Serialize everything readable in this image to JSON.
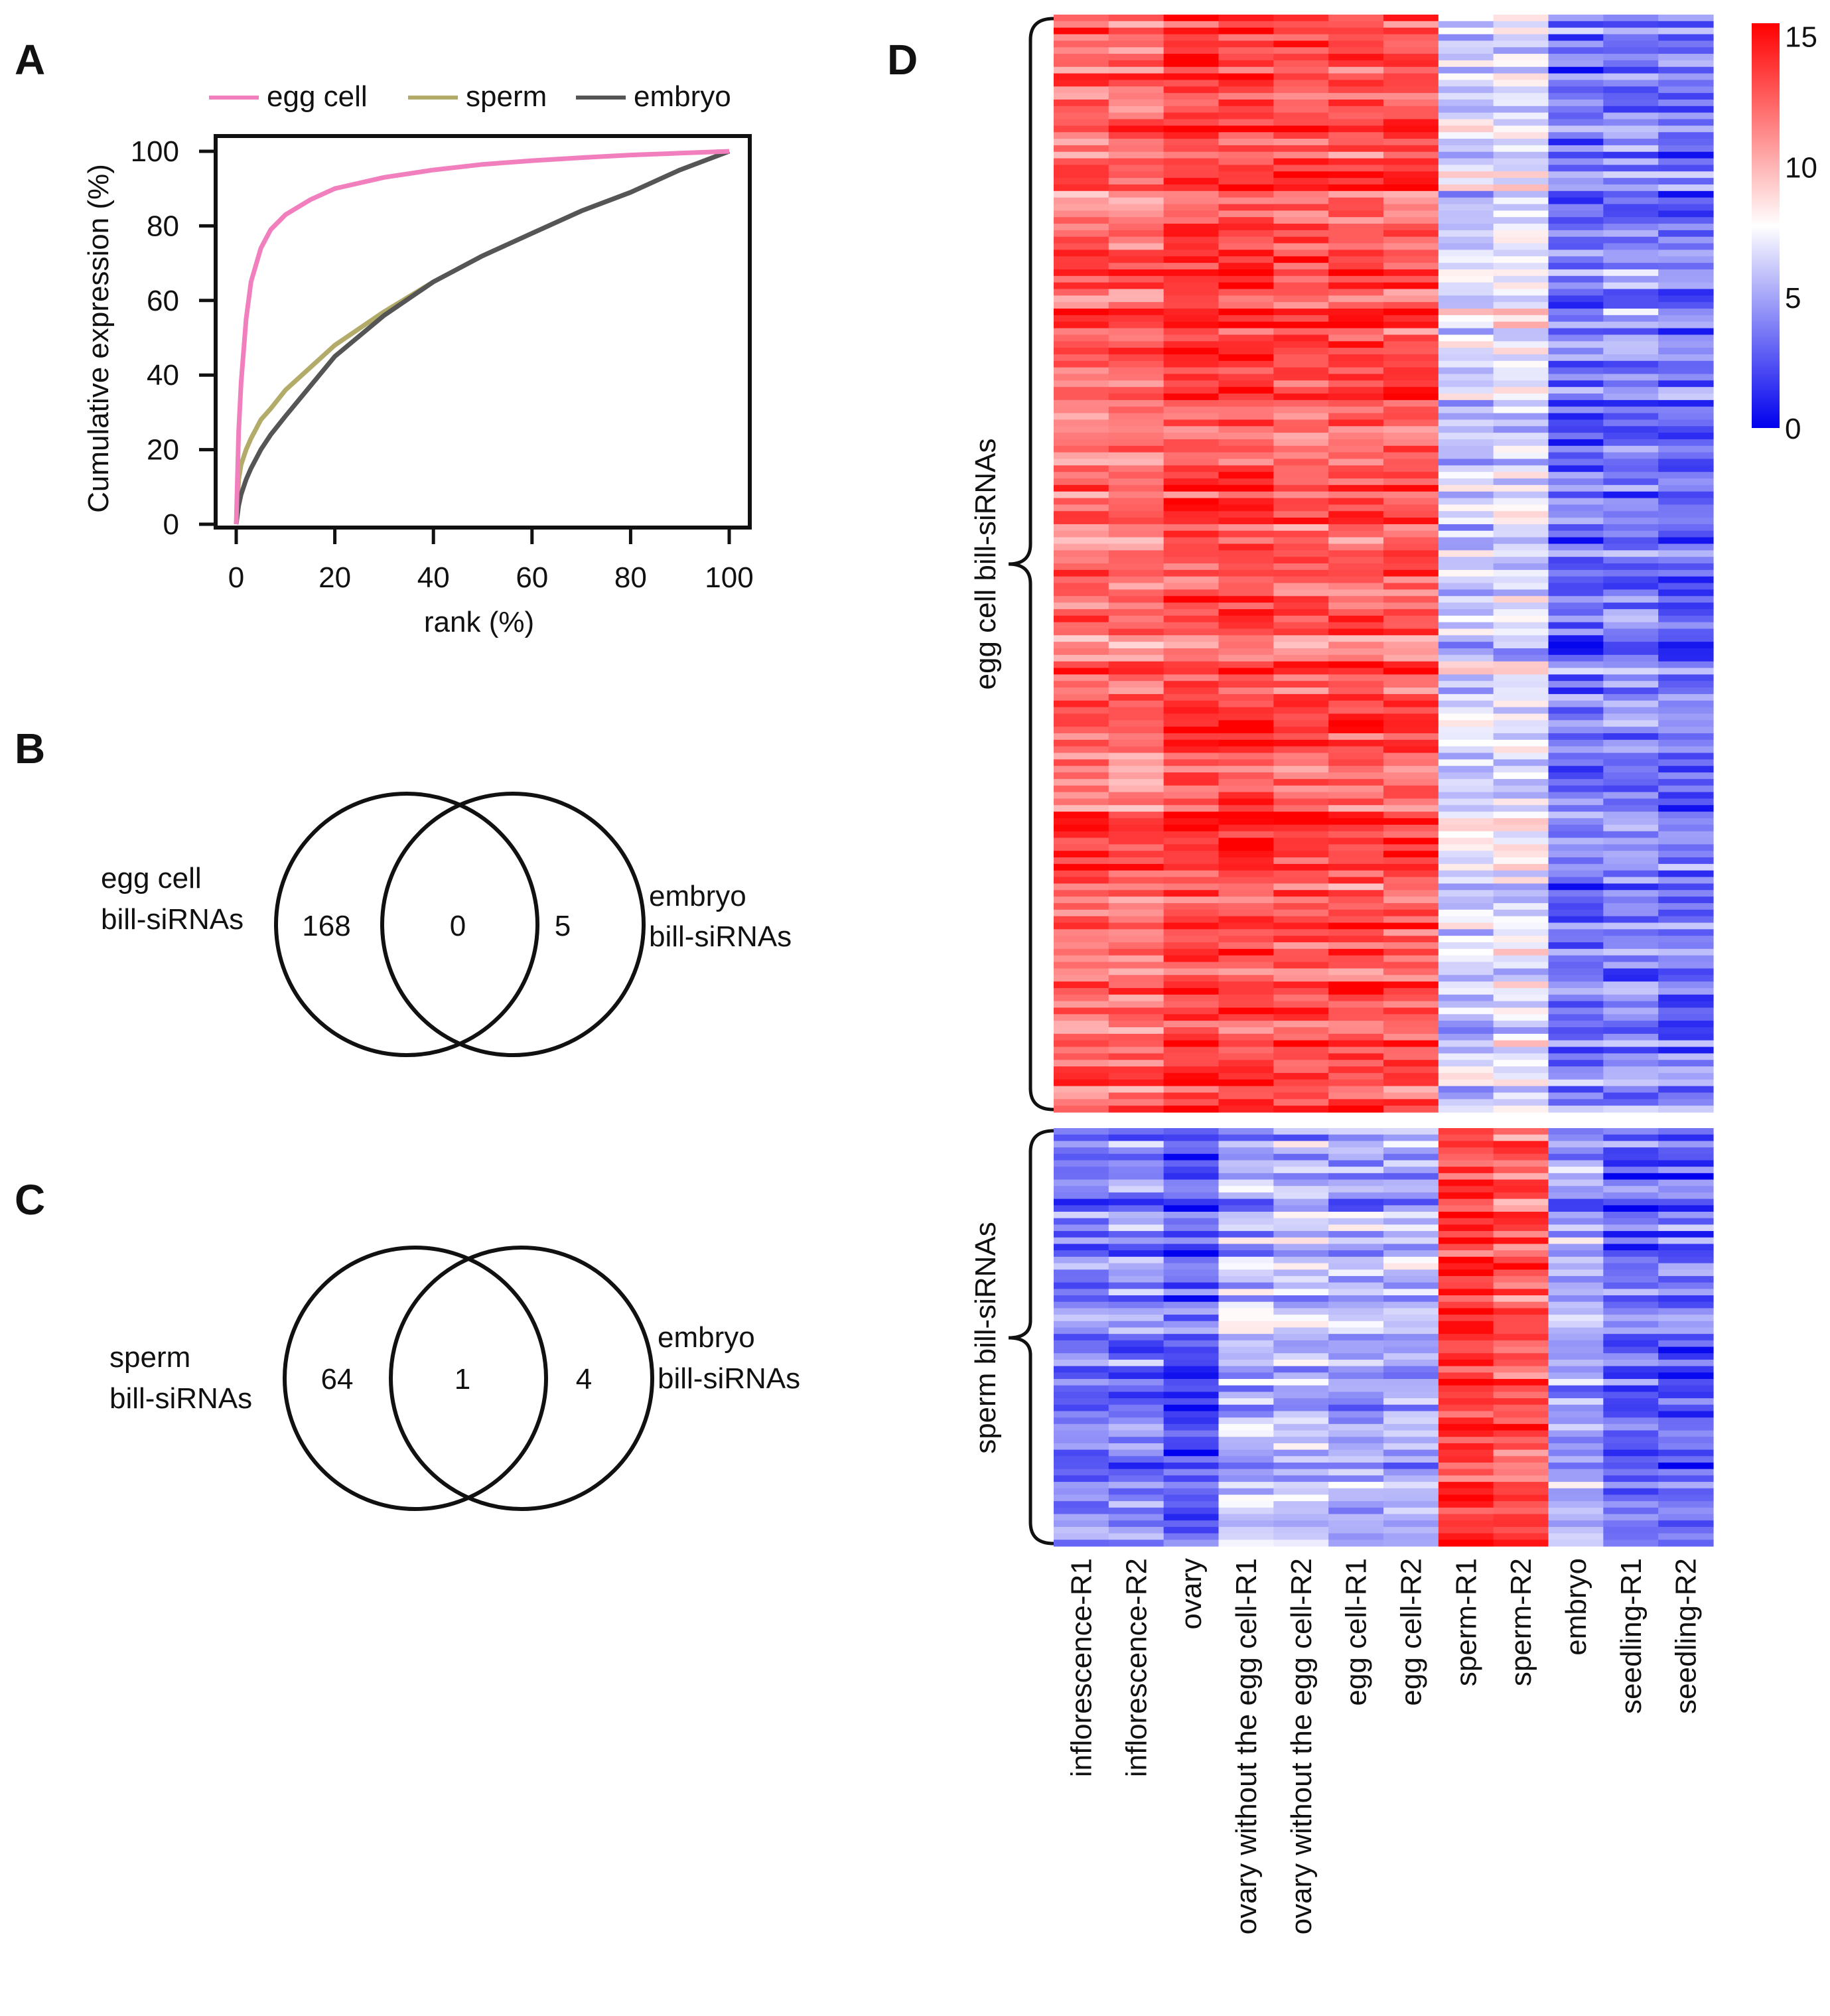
{
  "colors": {
    "egg_cell": "#f27fbd",
    "sperm": "#b3ab6a",
    "embryo": "#555555",
    "heat_low": "#0000ee",
    "heat_mid": "#ffffff",
    "heat_high": "#ff0000"
  },
  "panels": {
    "a": "A",
    "b": "B",
    "c": "C",
    "d": "D"
  },
  "chart_data": [
    {
      "type": "line",
      "panel": "A",
      "xlabel": "rank (%)",
      "ylabel": "Cumulative expression (%)",
      "xlim": [
        0,
        100
      ],
      "ylim": [
        0,
        100
      ],
      "xticks": [
        "0",
        "20",
        "40",
        "60",
        "80",
        "100"
      ],
      "yticks": [
        "0",
        "20",
        "40",
        "60",
        "80",
        "100"
      ],
      "x": [
        0,
        0.5,
        1,
        2,
        3,
        5,
        7,
        10,
        15,
        20,
        30,
        40,
        50,
        60,
        70,
        80,
        90,
        100
      ],
      "series": [
        {
          "name": "egg cell",
          "color_key": "egg_cell",
          "values": [
            0,
            25,
            38,
            55,
            65,
            74,
            79,
            83,
            87,
            90,
            93,
            95,
            96.5,
            97.5,
            98.3,
            99,
            99.5,
            100
          ]
        },
        {
          "name": "sperm",
          "color_key": "sperm",
          "values": [
            0,
            12,
            16,
            20,
            23,
            28,
            31,
            36,
            42,
            48,
            57,
            65,
            72,
            78,
            84,
            89,
            95,
            100
          ]
        },
        {
          "name": "embryo",
          "color_key": "embryo",
          "values": [
            0,
            5,
            8,
            12,
            15,
            20,
            24,
            29,
            37,
            45,
            56,
            65,
            72,
            78,
            84,
            89,
            95,
            100
          ]
        }
      ],
      "legend": [
        "egg cell",
        "sperm",
        "embryo"
      ],
      "legend_position": "top"
    },
    {
      "type": "venn",
      "panel": "B",
      "sets": [
        "egg cell bill-siRNAs",
        "embryo bill-siRNAs"
      ],
      "left_label": [
        "egg cell",
        "bill-siRNAs"
      ],
      "right_label": [
        "embryo",
        "bill-siRNAs"
      ],
      "left_only": "168",
      "overlap": "0",
      "right_only": "5"
    },
    {
      "type": "venn",
      "panel": "C",
      "sets": [
        "sperm bill-siRNAs",
        "embryo bill-siRNAs"
      ],
      "left_label": [
        "sperm",
        "bill-siRNAs"
      ],
      "right_label": [
        "embryo",
        "bill-siRNAs"
      ],
      "left_only": "64",
      "overlap": "1",
      "right_only": "4"
    },
    {
      "type": "heatmap",
      "panel": "D",
      "columns": [
        "inflorescence-R1",
        "inflorescence-R2",
        "ovary",
        "ovary without the egg cell-R1",
        "ovary without the egg cell-R2",
        "egg cell-R1",
        "egg cell-R2",
        "sperm-R1",
        "sperm-R2",
        "embryo",
        "seedling-R1",
        "seedling-R2"
      ],
      "groups": [
        {
          "label": "egg cell bill-siRNAs",
          "rows": 168,
          "column_means": [
            12.5,
            12.0,
            13.5,
            13.5,
            13.0,
            13.0,
            13.0,
            6.5,
            7.0,
            3.5,
            4.0,
            3.5
          ]
        },
        {
          "label": "sperm bill-siRNAs",
          "rows": 65,
          "column_means": [
            3.5,
            4.0,
            2.5,
            5.5,
            5.5,
            5.0,
            5.5,
            13.5,
            13.0,
            5.0,
            3.0,
            3.0
          ]
        }
      ],
      "colorbar_ticks": [
        "15",
        "10",
        "5",
        "0"
      ],
      "colorbar_range": [
        0,
        15.5
      ]
    }
  ]
}
